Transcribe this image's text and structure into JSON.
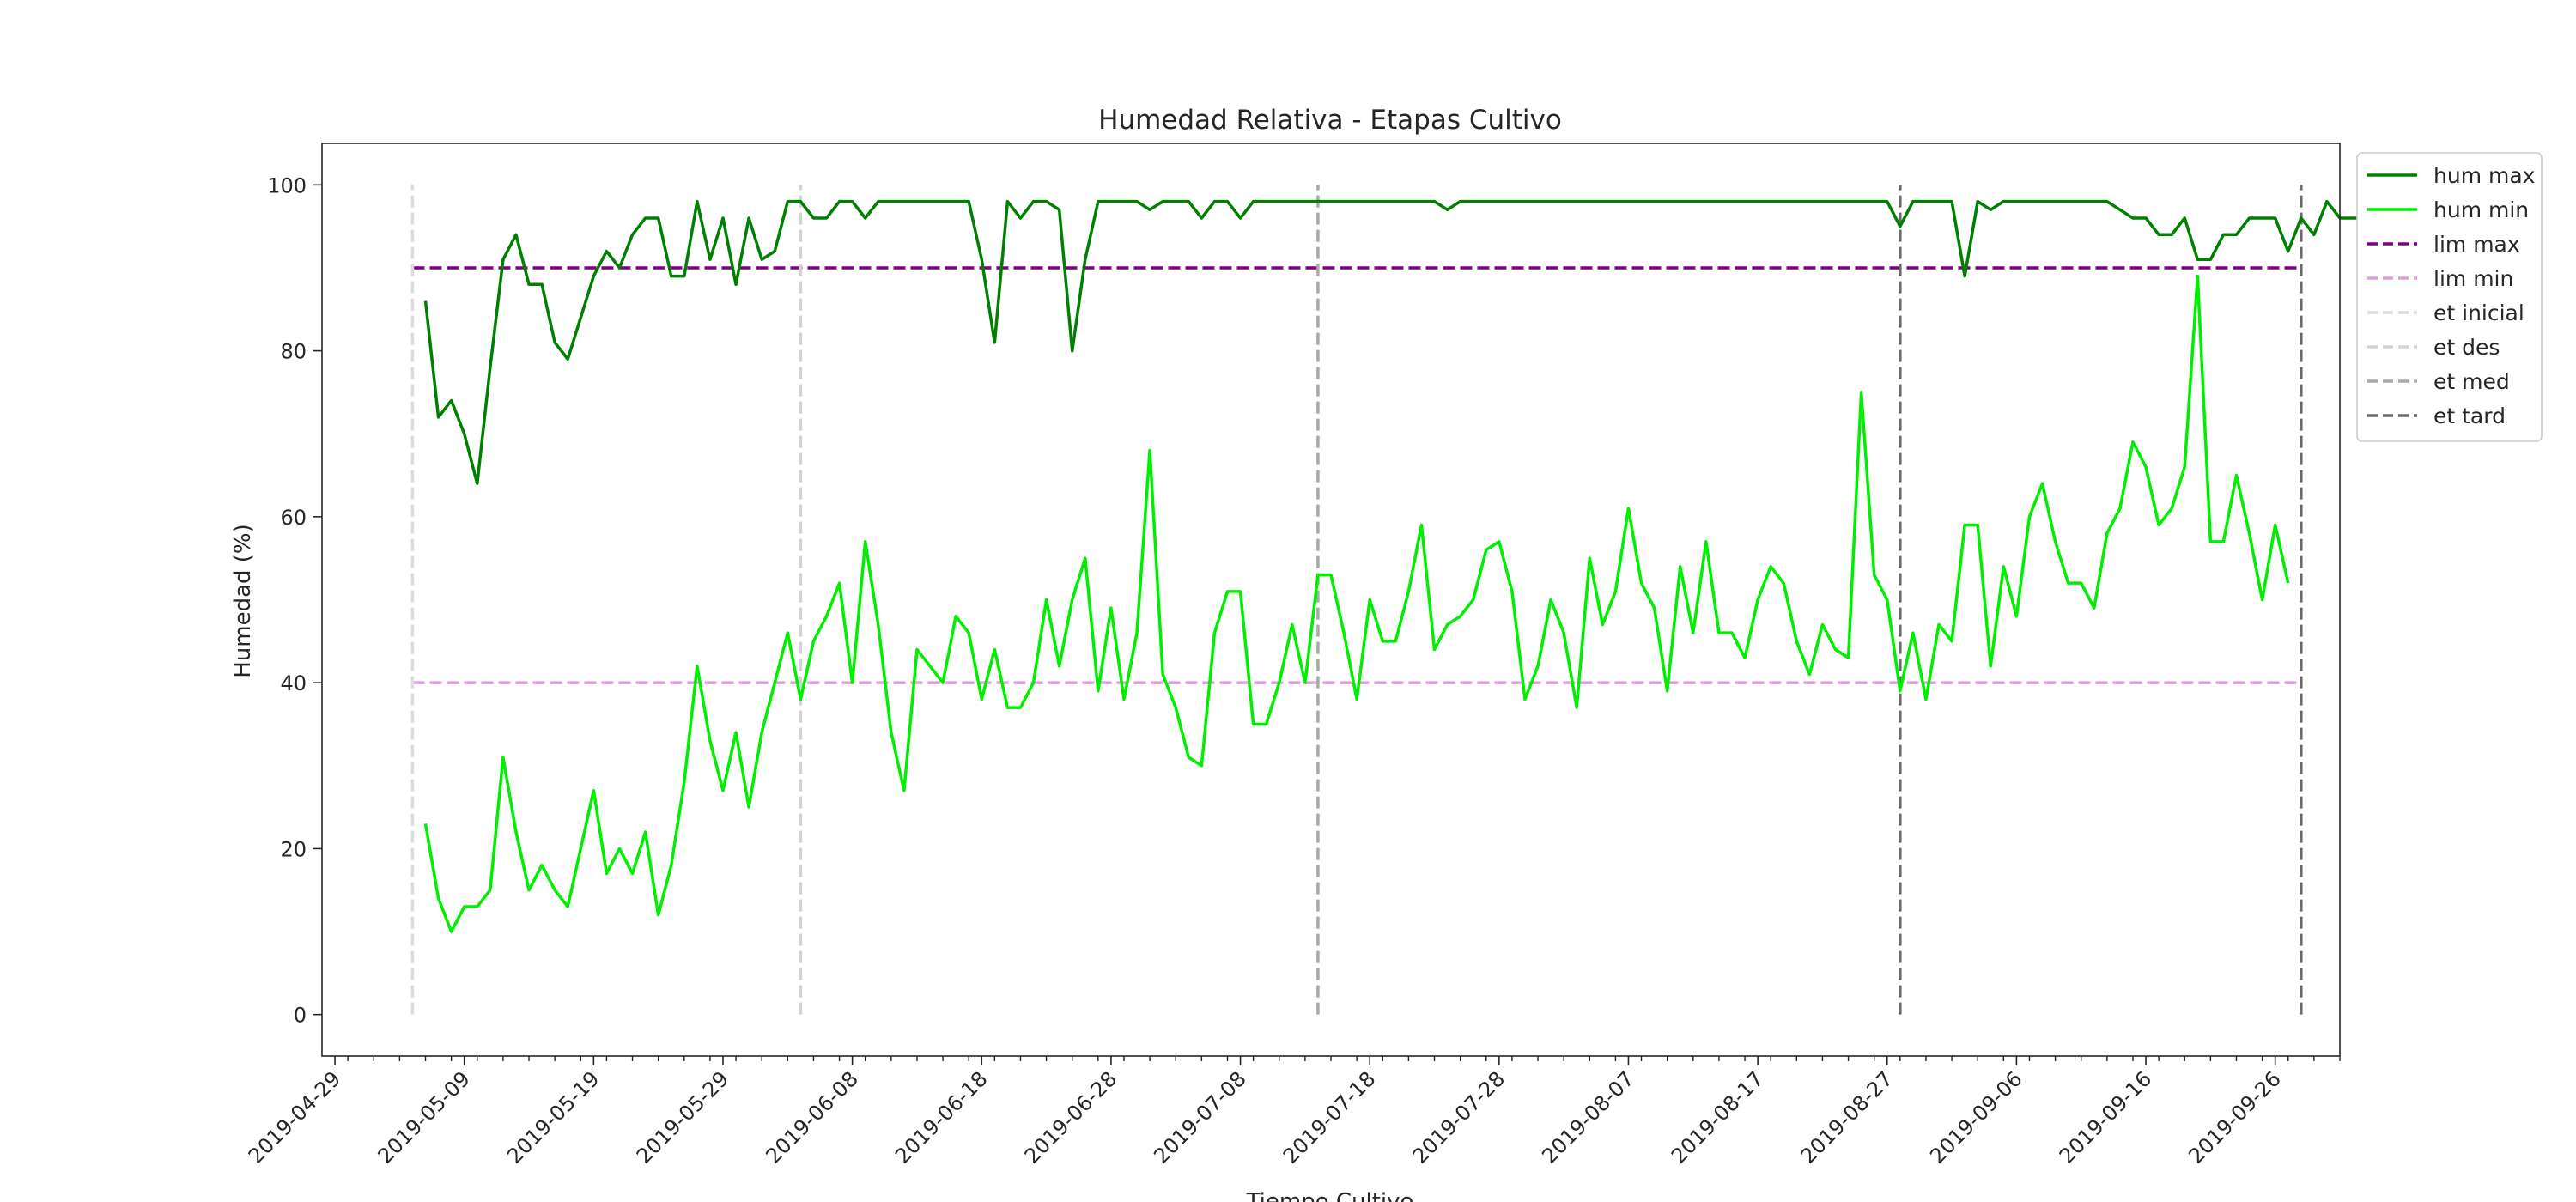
{
  "chart_data": {
    "type": "line",
    "title": "Humedad Relativa - Etapas Cultivo",
    "xlabel": "Tiempo Cultivo",
    "ylabel": "Humedad (%)",
    "xlim": [
      "2019-04-28",
      "2019-10-01"
    ],
    "ylim": [
      -5,
      105
    ],
    "x_ticks": [
      "2019-04-29",
      "2019-05-09",
      "2019-05-19",
      "2019-05-29",
      "2019-06-08",
      "2019-06-18",
      "2019-06-28",
      "2019-07-08",
      "2019-07-18",
      "2019-07-28",
      "2019-08-07",
      "2019-08-17",
      "2019-08-27",
      "2019-09-06",
      "2019-09-16",
      "2019-09-26"
    ],
    "y_ticks": [
      0,
      20,
      40,
      60,
      80,
      100
    ],
    "grid": false,
    "legend_position": "outside top-right",
    "start_date": "2019-05-06",
    "series": [
      {
        "name": "hum max",
        "color": "#008000",
        "style": "solid",
        "values": [
          86,
          72,
          74,
          70,
          64,
          78,
          91,
          94,
          88,
          88,
          81,
          79,
          84,
          89,
          92,
          90,
          94,
          96,
          96,
          89,
          89,
          98,
          91,
          96,
          88,
          96,
          91,
          92,
          98,
          98,
          96,
          96,
          98,
          98,
          96,
          98,
          98,
          98,
          98,
          98,
          98,
          98,
          98,
          91,
          81,
          98,
          96,
          98,
          98,
          97,
          80,
          91,
          98,
          98,
          98,
          98,
          97,
          98,
          98,
          98,
          96,
          98,
          98,
          96,
          98,
          98,
          98,
          98,
          98,
          98,
          98,
          98,
          98,
          98,
          98,
          98,
          98,
          98,
          98,
          97,
          98,
          98,
          98,
          98,
          98,
          98,
          98,
          98,
          98,
          98,
          98,
          98,
          98,
          98,
          98,
          98,
          98,
          98,
          98,
          98,
          98,
          98,
          98,
          98,
          98,
          98,
          98,
          98,
          98,
          98,
          98,
          98,
          98,
          98,
          95,
          98,
          98,
          98,
          98,
          89,
          98,
          97,
          98,
          98,
          98,
          98,
          98,
          98,
          98,
          98,
          98,
          97,
          96,
          96,
          94,
          94,
          96,
          91,
          91,
          94,
          94,
          96,
          96,
          96,
          92,
          96,
          94,
          98,
          96,
          96,
          96,
          96,
          96,
          96,
          94,
          94,
          96,
          96,
          98
        ]
      },
      {
        "name": "hum min",
        "color": "#00ee00",
        "style": "solid",
        "values": [
          23,
          14,
          10,
          13,
          13,
          15,
          31,
          22,
          15,
          18,
          15,
          13,
          20,
          27,
          17,
          20,
          17,
          22,
          12,
          18,
          28,
          42,
          33,
          27,
          34,
          25,
          34,
          40,
          46,
          38,
          45,
          48,
          52,
          40,
          57,
          47,
          34,
          27,
          44,
          42,
          40,
          48,
          46,
          38,
          44,
          37,
          37,
          40,
          50,
          42,
          50,
          55,
          39,
          49,
          38,
          46,
          68,
          41,
          37,
          31,
          30,
          46,
          51,
          51,
          35,
          35,
          40,
          47,
          40,
          53,
          53,
          46,
          38,
          50,
          45,
          45,
          51,
          59,
          44,
          47,
          48,
          50,
          56,
          57,
          51,
          38,
          42,
          50,
          46,
          37,
          55,
          47,
          51,
          61,
          52,
          49,
          39,
          54,
          46,
          57,
          46,
          46,
          43,
          50,
          54,
          52,
          45,
          41,
          47,
          44,
          43,
          75,
          53,
          50,
          39,
          46,
          38,
          47,
          45,
          59,
          59,
          42,
          54,
          48,
          60,
          64,
          57,
          52,
          52,
          49,
          58,
          61,
          69,
          66,
          59,
          61,
          66,
          89,
          57,
          57,
          65,
          58,
          50,
          59,
          52
        ]
      },
      {
        "name": "lim max",
        "color": "#800080",
        "style": "dashed",
        "value": 90,
        "x_range": [
          "2019-05-05",
          "2019-09-28"
        ]
      },
      {
        "name": "lim min",
        "color": "#dda0dd",
        "style": "dashed",
        "value": 40,
        "x_range": [
          "2019-05-05",
          "2019-09-28"
        ]
      },
      {
        "name": "et inicial",
        "color": "#dcdcdc",
        "style": "dashed",
        "x": "2019-05-05",
        "y_range": [
          0,
          100
        ]
      },
      {
        "name": "et des",
        "color": "#d3d3d3",
        "style": "dashed",
        "x": "2019-06-04",
        "y_range": [
          0,
          100
        ]
      },
      {
        "name": "et med",
        "color": "#a9a9a9",
        "style": "dashed",
        "x": "2019-07-14",
        "y_range": [
          0,
          100
        ]
      },
      {
        "name": "et tard",
        "color": "#696969",
        "style": "dashed",
        "x": "2019-08-28",
        "x2": "2019-09-28",
        "y_range": [
          0,
          100
        ]
      }
    ]
  }
}
